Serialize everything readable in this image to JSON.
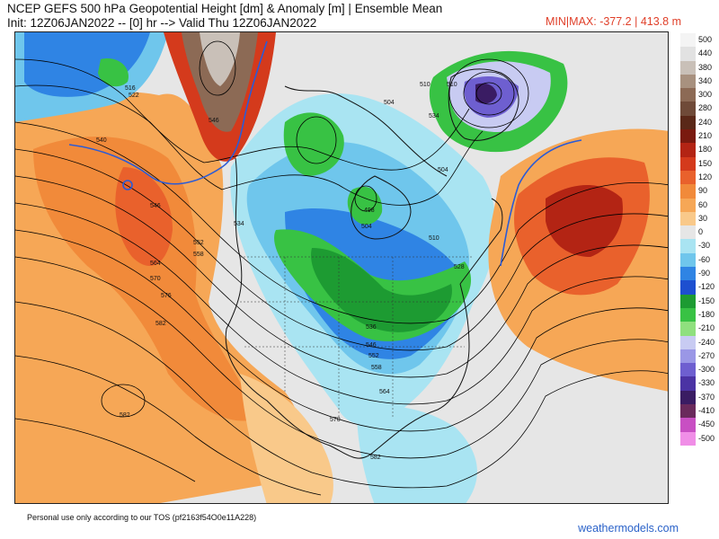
{
  "header": {
    "title_line1": "NCEP GEFS 500 hPa Geopotential Height [dm] & Anomaly [m] | Ensemble Mean",
    "title_line2": "Init: 12Z06JAN2022 -- [0] hr --> Valid Thu 12Z06JAN2022",
    "minmax": "MIN|MAX: -377.2 | 413.8 m"
  },
  "legend": {
    "items": [
      {
        "label": "500",
        "color": "#f4f4f4"
      },
      {
        "label": "440",
        "color": "#e2e2e2"
      },
      {
        "label": "380",
        "color": "#c9c0b8"
      },
      {
        "label": "340",
        "color": "#a8917f"
      },
      {
        "label": "300",
        "color": "#8c6a55"
      },
      {
        "label": "280",
        "color": "#6f4a38"
      },
      {
        "label": "240",
        "color": "#5a2818"
      },
      {
        "label": "210",
        "color": "#7a1a0f"
      },
      {
        "label": "180",
        "color": "#b32414"
      },
      {
        "label": "150",
        "color": "#d43a1c"
      },
      {
        "label": "120",
        "color": "#e9612c"
      },
      {
        "label": "90",
        "color": "#f18a3a"
      },
      {
        "label": "60",
        "color": "#f6a756"
      },
      {
        "label": "30",
        "color": "#f9c98a"
      },
      {
        "label": "0",
        "color": "#e6e6e6"
      },
      {
        "label": "-30",
        "color": "#a9e4f2"
      },
      {
        "label": "-60",
        "color": "#6fc6ec"
      },
      {
        "label": "-90",
        "color": "#2f84e4"
      },
      {
        "label": "-120",
        "color": "#1d4fd0"
      },
      {
        "label": "-150",
        "color": "#1d9b32"
      },
      {
        "label": "-180",
        "color": "#38c244"
      },
      {
        "label": "-210",
        "color": "#8fe07e"
      },
      {
        "label": "-240",
        "color": "#c8cbf2"
      },
      {
        "label": "-270",
        "color": "#9a97e6"
      },
      {
        "label": "-300",
        "color": "#6e5fd0"
      },
      {
        "label": "-330",
        "color": "#4b33a4"
      },
      {
        "label": "-370",
        "color": "#3a1c63"
      },
      {
        "label": "-410",
        "color": "#6a2a5c"
      },
      {
        "label": "-450",
        "color": "#c84fc3"
      },
      {
        "label": "-500",
        "color": "#f08ee7"
      }
    ]
  },
  "map": {
    "contour_labels": [
      "516",
      "522",
      "534",
      "540",
      "546",
      "552",
      "558",
      "564",
      "570",
      "576",
      "582",
      "510",
      "504",
      "498",
      "528",
      "536",
      "546",
      "552",
      "558",
      "564",
      "570",
      "576",
      "582"
    ]
  },
  "footer": {
    "tos": "Personal use only according to our TOS (pf2163f54O0e11A228)",
    "brand": "weathermodels.com"
  }
}
